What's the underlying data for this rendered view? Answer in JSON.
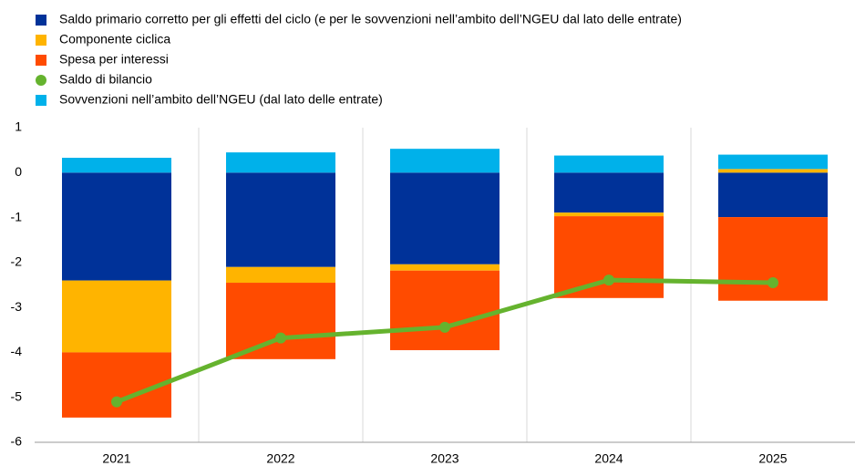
{
  "chart_data": {
    "type": "bar",
    "stacked": true,
    "categories": [
      "2021",
      "2022",
      "2023",
      "2024",
      "2025"
    ],
    "series": [
      {
        "name": "Saldo primario corretto per gli effetti del ciclo (e per le sovvenzioni nell’ambito dell’NGEU dal lato delle entrate)",
        "color": "#003299",
        "values": [
          -2.4,
          -2.1,
          -2.04,
          -0.89,
          -0.99
        ]
      },
      {
        "name": "Componente ciclica",
        "color": "#ffb400",
        "values": [
          -1.6,
          -0.35,
          -0.14,
          -0.08,
          0.08
        ]
      },
      {
        "name": "Spesa per interessi",
        "color": "#ff4b00",
        "values": [
          -1.45,
          -1.7,
          -1.77,
          -1.82,
          -1.86
        ]
      },
      {
        "name": "Saldo di bilancio",
        "color": "#65b32e",
        "type": "line",
        "values": [
          -5.1,
          -3.68,
          -3.44,
          -2.39,
          -2.45
        ]
      },
      {
        "name": "Sovvenzioni nell’ambito dell’NGEU (dal lato delle entrate)",
        "color": "#00b1ea",
        "values": [
          0.33,
          0.45,
          0.53,
          0.38,
          0.32
        ]
      }
    ],
    "ylim": [
      -6,
      1
    ],
    "yticks": [
      -6,
      -5,
      -4,
      -3,
      -2,
      -1,
      0,
      1
    ]
  }
}
